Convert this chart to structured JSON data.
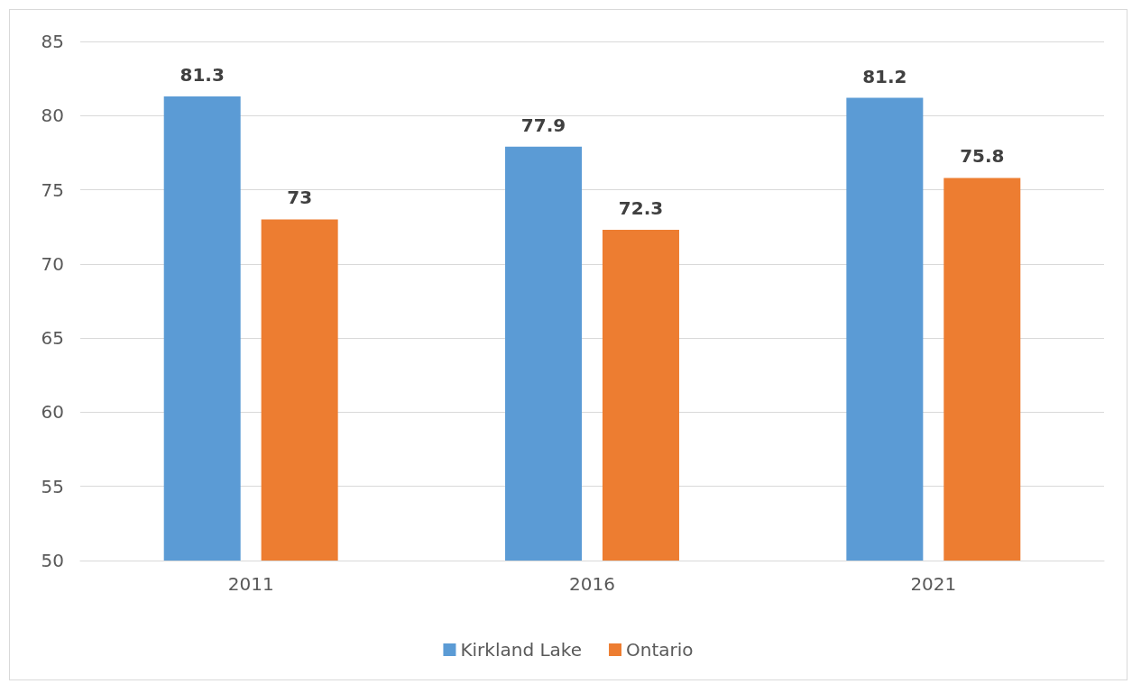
{
  "chart_data": {
    "type": "bar",
    "categories": [
      "2011",
      "2016",
      "2021"
    ],
    "series": [
      {
        "name": "Kirkland Lake",
        "color": "#5b9bd5",
        "values": [
          81.3,
          77.9,
          81.2
        ]
      },
      {
        "name": "Ontario",
        "color": "#ed7d31",
        "values": [
          73,
          72.3,
          75.8
        ]
      }
    ],
    "ylim": [
      50,
      85
    ],
    "yticks": [
      50,
      55,
      60,
      65,
      70,
      75,
      80,
      85
    ],
    "grid": "y",
    "legend": "bottom",
    "data_labels": true
  }
}
